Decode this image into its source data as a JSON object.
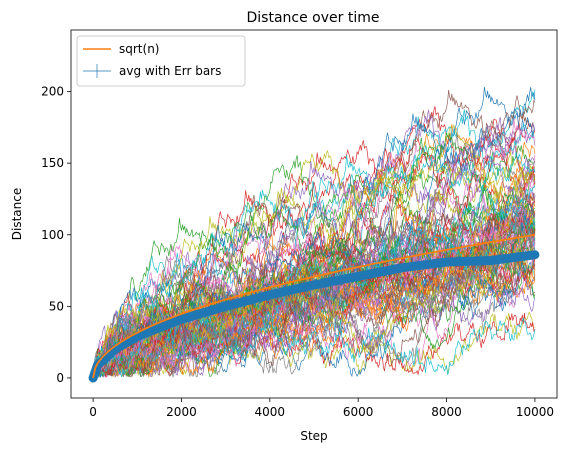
{
  "chart_data": {
    "type": "line",
    "title": "Distance over time",
    "xlabel": "Step",
    "ylabel": "Distance",
    "xlim": [
      -500,
      10500
    ],
    "ylim": [
      -14,
      243
    ],
    "xticks": [
      0,
      2000,
      4000,
      6000,
      8000,
      10000
    ],
    "yticks": [
      0,
      50,
      100,
      150,
      200
    ],
    "legend": {
      "placement": "top-left",
      "entries": [
        {
          "name": "sqrt(n)",
          "color": "#ff7f0e",
          "style": "line"
        },
        {
          "name": "avg with Err bars",
          "color": "#1f77b4",
          "style": "errorbar"
        }
      ]
    },
    "walks": {
      "count": 100,
      "steps": 10000,
      "colors": [
        "#1f77b4",
        "#ff7f0e",
        "#2ca02c",
        "#d62728",
        "#9467bd",
        "#8c564b",
        "#e377c2",
        "#7f7f7f",
        "#bcbd22",
        "#17becf"
      ]
    },
    "series": [
      {
        "name": "sqrt(n)",
        "x": [
          0,
          100,
          500,
          1000,
          2000,
          3000,
          4000,
          5000,
          6000,
          7000,
          8000,
          9000,
          10000
        ],
        "y": [
          0,
          10,
          22.4,
          31.6,
          44.7,
          54.8,
          63.2,
          70.7,
          77.5,
          83.7,
          89.4,
          94.9,
          100
        ]
      },
      {
        "name": "avg with Err bars",
        "x": [
          0,
          100,
          500,
          1000,
          2000,
          3000,
          4000,
          5000,
          6000,
          7000,
          8000,
          9000,
          10000
        ],
        "y": [
          0,
          9,
          20,
          29,
          41,
          50,
          58,
          65,
          71,
          77,
          81,
          82,
          86
        ]
      }
    ]
  }
}
